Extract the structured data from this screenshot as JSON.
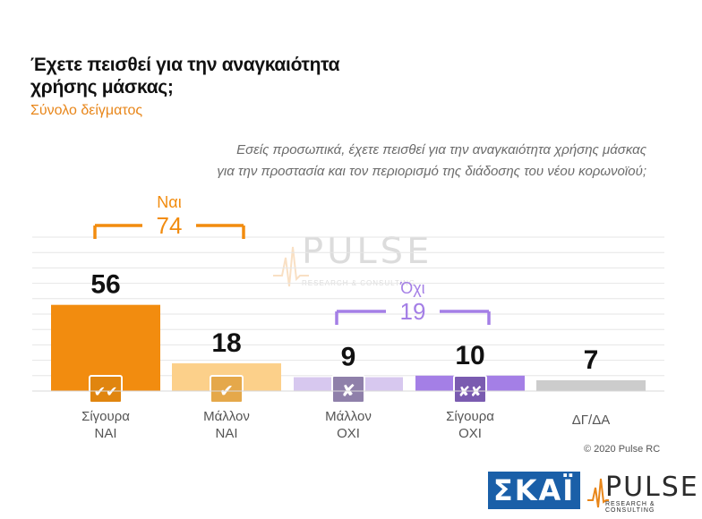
{
  "title": "Έχετε πεισθεί για την αναγκαιότητα χρήσης μάσκας;",
  "subtitle": "Σύνολο δείγματος",
  "question": [
    "Εσείς προσωπικά, έχετε πεισθεί για την αναγκαιότητα χρήσης μάσκας",
    "για την προστασία και τον περιορισμό της διάδοσης του νέου κορωνοϊού;"
  ],
  "copyright": "© 2020 Pulse RC",
  "logos": {
    "skai": "ΣΚΑΪ",
    "pulse": "PULSE",
    "pulse_sub": "RESEARCH & CONSULTING"
  },
  "watermark": {
    "word": "PULSE",
    "sub": "RESEARCH & CONSULTING"
  },
  "colors": {
    "orange": "#f28c0f",
    "light_orange": "#fcd08a",
    "light_purple": "#d7c8ef",
    "purple": "#a47fe6",
    "grey": "#cccccc",
    "accent_orange": "#e8861a"
  },
  "chart_data": {
    "type": "bar",
    "categories": [
      [
        "Σίγουρα",
        "ΝΑΙ"
      ],
      [
        "Μάλλον",
        "ΝΑΙ"
      ],
      [
        "Μάλλον",
        "ΟΧΙ"
      ],
      [
        "Σίγουρα",
        "ΟΧΙ"
      ],
      [
        "ΔΓ/ΔΑ"
      ]
    ],
    "values": [
      56,
      18,
      9,
      10,
      7
    ],
    "bar_colors": [
      "#f28c0f",
      "#fcd08a",
      "#d7c8ef",
      "#a47fe6",
      "#cccccc"
    ],
    "icons": [
      "double-check-icon",
      "check-icon",
      "cross-icon",
      "double-cross-icon",
      ""
    ],
    "icon_glyphs": [
      "✔✔",
      "✔",
      "✘",
      "✘✘",
      ""
    ],
    "icon_colors": [
      "#e0850f",
      "#e5a84a",
      "#8f80aa",
      "#7a5bb0",
      ""
    ],
    "groups": [
      {
        "label": "Ναι",
        "value": "74",
        "color": "#f28c0f",
        "from": 0,
        "to": 1
      },
      {
        "label": "Όχι",
        "value": "19",
        "color": "#a47fe6",
        "from": 2,
        "to": 3
      }
    ],
    "ylim": [
      0,
      100
    ],
    "grid": true
  }
}
